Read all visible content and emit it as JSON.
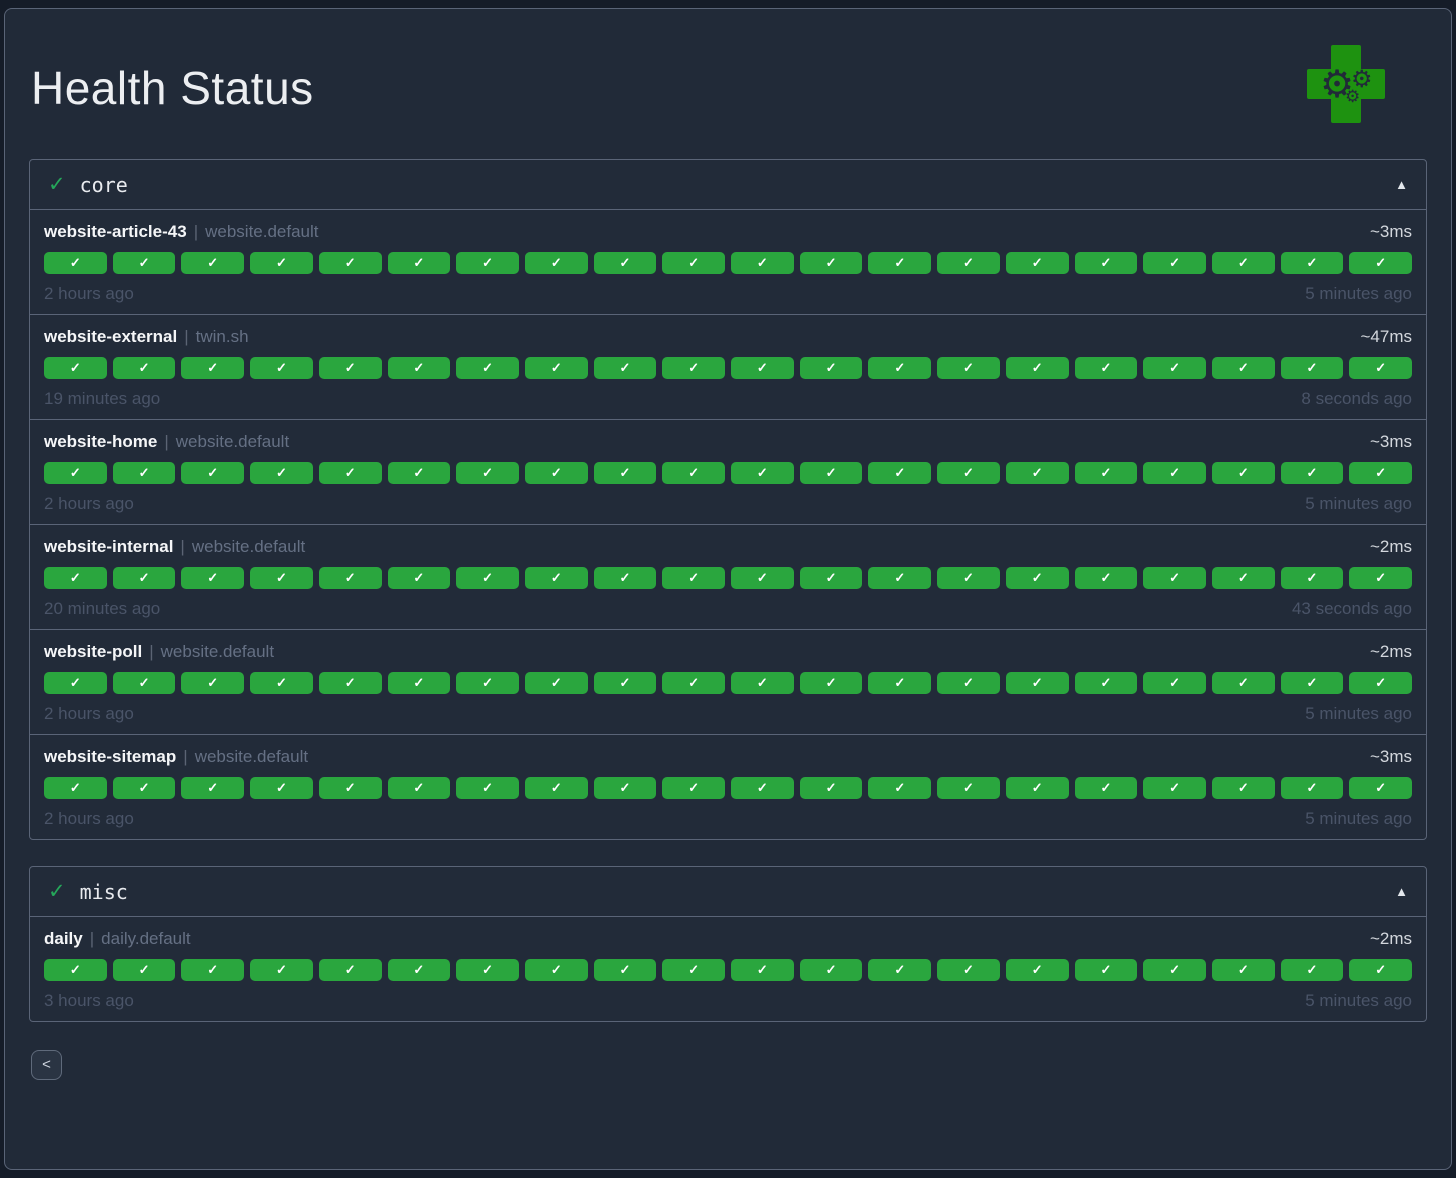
{
  "title": "Health Status",
  "app_icon": {
    "gear_glyph": "⚙",
    "cross_color": "#1e9210"
  },
  "colors": {
    "pill_ok_green": "#2aa63e",
    "status_ok_green": "#25a75a",
    "panel_border": "#5a6477",
    "background": "#212a38"
  },
  "pager": {
    "prev_label": "<"
  },
  "sections": [
    {
      "label": "core",
      "status_icon": "✓",
      "collapse_icon": "▲",
      "checks": [
        {
          "name": "website-article-43",
          "divider": "|",
          "target": "website.default",
          "latency": "~3ms",
          "oldest": "2 hours ago",
          "newest": "5 minutes ago",
          "history": {
            "ok_count": 20,
            "icon": "✓"
          }
        },
        {
          "name": "website-external",
          "divider": "|",
          "target": "twin.sh",
          "latency": "~47ms",
          "oldest": "19 minutes ago",
          "newest": "8 seconds ago",
          "history": {
            "ok_count": 20,
            "icon": "✓"
          }
        },
        {
          "name": "website-home",
          "divider": "|",
          "target": "website.default",
          "latency": "~3ms",
          "oldest": "2 hours ago",
          "newest": "5 minutes ago",
          "history": {
            "ok_count": 20,
            "icon": "✓"
          }
        },
        {
          "name": "website-internal",
          "divider": "|",
          "target": "website.default",
          "latency": "~2ms",
          "oldest": "20 minutes ago",
          "newest": "43 seconds ago",
          "history": {
            "ok_count": 20,
            "icon": "✓"
          }
        },
        {
          "name": "website-poll",
          "divider": "|",
          "target": "website.default",
          "latency": "~2ms",
          "oldest": "2 hours ago",
          "newest": "5 minutes ago",
          "history": {
            "ok_count": 20,
            "icon": "✓"
          }
        },
        {
          "name": "website-sitemap",
          "divider": "|",
          "target": "website.default",
          "latency": "~3ms",
          "oldest": "2 hours ago",
          "newest": "5 minutes ago",
          "history": {
            "ok_count": 20,
            "icon": "✓"
          }
        }
      ]
    },
    {
      "label": "misc",
      "status_icon": "✓",
      "collapse_icon": "▲",
      "checks": [
        {
          "name": "daily",
          "divider": "|",
          "target": "daily.default",
          "latency": "~2ms",
          "oldest": "3 hours ago",
          "newest": "5 minutes ago",
          "history": {
            "ok_count": 20,
            "icon": "✓"
          }
        }
      ]
    }
  ]
}
